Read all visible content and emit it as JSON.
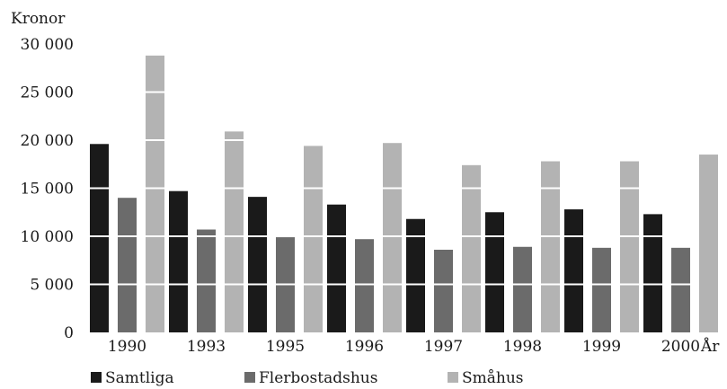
{
  "chart_data": {
    "type": "bar",
    "ylabel": "Kronor",
    "xlabel": "År",
    "categories": [
      "1990",
      "1993",
      "1995",
      "1996",
      "1997",
      "1998",
      "1999",
      "2000"
    ],
    "ylim": [
      0,
      30000
    ],
    "yticks": [
      0,
      5000,
      10000,
      15000,
      20000,
      25000,
      30000
    ],
    "ytick_labels": [
      "0",
      "5 000",
      "10 000",
      "15 000",
      "20 000",
      "25 000",
      "30 000"
    ],
    "grid": "horizontal, white lines drawn over bars",
    "legend_position": "bottom",
    "series": [
      {
        "name": "Samtliga",
        "color": "#1a1a1a",
        "values": [
          19600,
          14700,
          14100,
          13300,
          11800,
          12500,
          12800,
          12300
        ]
      },
      {
        "name": "Flerbostadshus",
        "color": "#6b6b6b",
        "values": [
          14000,
          10700,
          9900,
          9700,
          8600,
          8900,
          8800,
          8800
        ]
      },
      {
        "name": "Småhus",
        "color": "#b3b3b3",
        "values": [
          28800,
          20900,
          19400,
          19700,
          17400,
          17800,
          17800,
          18500
        ]
      }
    ]
  }
}
